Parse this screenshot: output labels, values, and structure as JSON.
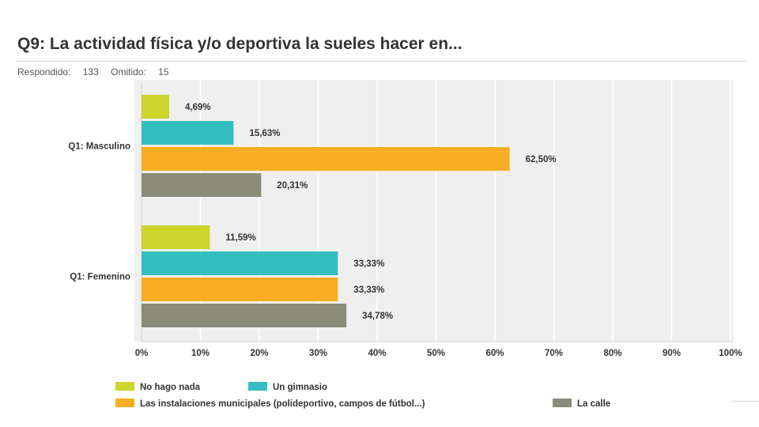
{
  "header": {
    "title": "Q9: La actividad física y/o deportiva la sueles hacer en...",
    "answered_label": "Respondido:",
    "answered_count": "133",
    "skipped_label": "Omitido:",
    "skipped_count": "15"
  },
  "chart_data": {
    "type": "bar",
    "orientation": "horizontal",
    "categories": [
      "Q1: Masculino",
      "Q1: Femenino"
    ],
    "series": [
      {
        "name": "No hago nada",
        "values": [
          4.69,
          11.59
        ],
        "labels": [
          "4,69%",
          "11,59%"
        ],
        "color": "#cbd52c"
      },
      {
        "name": "Un gimnasio",
        "values": [
          15.63,
          33.33
        ],
        "labels": [
          "15,63%",
          "33,33%"
        ],
        "color": "#33bfc0"
      },
      {
        "name": "Las instalaciones municipales (polideportivo, campos de fútbol...)",
        "values": [
          62.5,
          33.33
        ],
        "labels": [
          "62,50%",
          "33,33%"
        ],
        "color": "#f7ae22"
      },
      {
        "name": "La calle",
        "values": [
          20.31,
          34.78
        ],
        "labels": [
          "20,31%",
          "34,78%"
        ],
        "color": "#8b8b7a"
      }
    ],
    "xlim": [
      0,
      100
    ],
    "x_ticks": [
      "0%",
      "10%",
      "20%",
      "30%",
      "40%",
      "50%",
      "60%",
      "70%",
      "80%",
      "90%",
      "100%"
    ],
    "grid": true,
    "legend_position": "bottom",
    "background_color": "#efefef",
    "gridline_color": "#ffffff"
  }
}
